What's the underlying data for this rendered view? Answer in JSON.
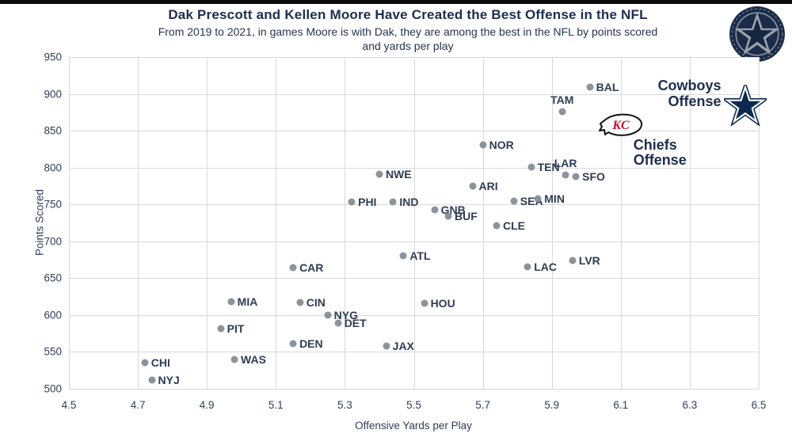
{
  "header": {
    "title": "Dak Prescott and Kellen Moore Have Created the Best Offense in the NFL",
    "subtitle": "From 2019 to 2021, in games Moore is with Dak, they are among the best in the NFL by points scored and yards per play"
  },
  "badge": {
    "icon": "star-badge-logo"
  },
  "chart_data": {
    "type": "scatter",
    "title": "Dak Prescott and Kellen Moore Have Created the Best Offense in the NFL",
    "subtitle": "From 2019 to 2021, in games Moore is with Dak, they are among the best in the NFL by points scored and yards per play",
    "xlabel": "Offensive Yards per Play",
    "ylabel": "Points Scored",
    "xlim": [
      4.5,
      6.5
    ],
    "ylim": [
      500,
      950
    ],
    "x_ticks": [
      4.5,
      4.7,
      4.9,
      5.1,
      5.3,
      5.5,
      5.7,
      5.9,
      6.1,
      6.3,
      6.5
    ],
    "y_ticks": [
      500,
      550,
      600,
      650,
      700,
      750,
      800,
      850,
      900,
      950
    ],
    "grid": true,
    "point_color": "#8b939b",
    "label_color": "#2e3c55",
    "points": [
      {
        "team": "CHI",
        "x": 4.72,
        "y": 535
      },
      {
        "team": "NYJ",
        "x": 4.74,
        "y": 512
      },
      {
        "team": "PIT",
        "x": 4.94,
        "y": 582
      },
      {
        "team": "MIA",
        "x": 4.97,
        "y": 618
      },
      {
        "team": "WAS",
        "x": 4.98,
        "y": 540
      },
      {
        "team": "CAR",
        "x": 5.15,
        "y": 664
      },
      {
        "team": "DEN",
        "x": 5.15,
        "y": 561
      },
      {
        "team": "CIN",
        "x": 5.17,
        "y": 617
      },
      {
        "team": "NYG",
        "x": 5.25,
        "y": 600
      },
      {
        "team": "DET",
        "x": 5.28,
        "y": 589
      },
      {
        "team": "PHI",
        "x": 5.32,
        "y": 753
      },
      {
        "team": "NWE",
        "x": 5.4,
        "y": 791
      },
      {
        "team": "JAX",
        "x": 5.42,
        "y": 558
      },
      {
        "team": "IND",
        "x": 5.44,
        "y": 753
      },
      {
        "team": "ATL",
        "x": 5.47,
        "y": 680
      },
      {
        "team": "HOU",
        "x": 5.53,
        "y": 616
      },
      {
        "team": "GNB",
        "x": 5.56,
        "y": 743
      },
      {
        "team": "BUF",
        "x": 5.6,
        "y": 734
      },
      {
        "team": "ARI",
        "x": 5.67,
        "y": 775
      },
      {
        "team": "NOR",
        "x": 5.7,
        "y": 831
      },
      {
        "team": "CLE",
        "x": 5.74,
        "y": 721
      },
      {
        "team": "SEA",
        "x": 5.79,
        "y": 754
      },
      {
        "team": "LAC",
        "x": 5.83,
        "y": 665
      },
      {
        "team": "TEN",
        "x": 5.84,
        "y": 801
      },
      {
        "team": "MIN",
        "x": 5.86,
        "y": 758
      },
      {
        "team": "TAM",
        "x": 5.93,
        "y": 876,
        "label_pos": "above"
      },
      {
        "team": "LAR",
        "x": 5.94,
        "y": 790,
        "label_pos": "above"
      },
      {
        "team": "LVR",
        "x": 5.96,
        "y": 674
      },
      {
        "team": "SFO",
        "x": 5.97,
        "y": 788
      },
      {
        "team": "BAL",
        "x": 6.01,
        "y": 909
      }
    ],
    "highlights": [
      {
        "name": "cowboys",
        "label": "Cowboys Offense",
        "x": 6.46,
        "y": 884,
        "icon": "cowboys-star-icon"
      },
      {
        "name": "chiefs",
        "label": "Chiefs Offense",
        "x": 6.1,
        "y": 858,
        "icon": "chiefs-arrowhead-icon"
      }
    ]
  }
}
